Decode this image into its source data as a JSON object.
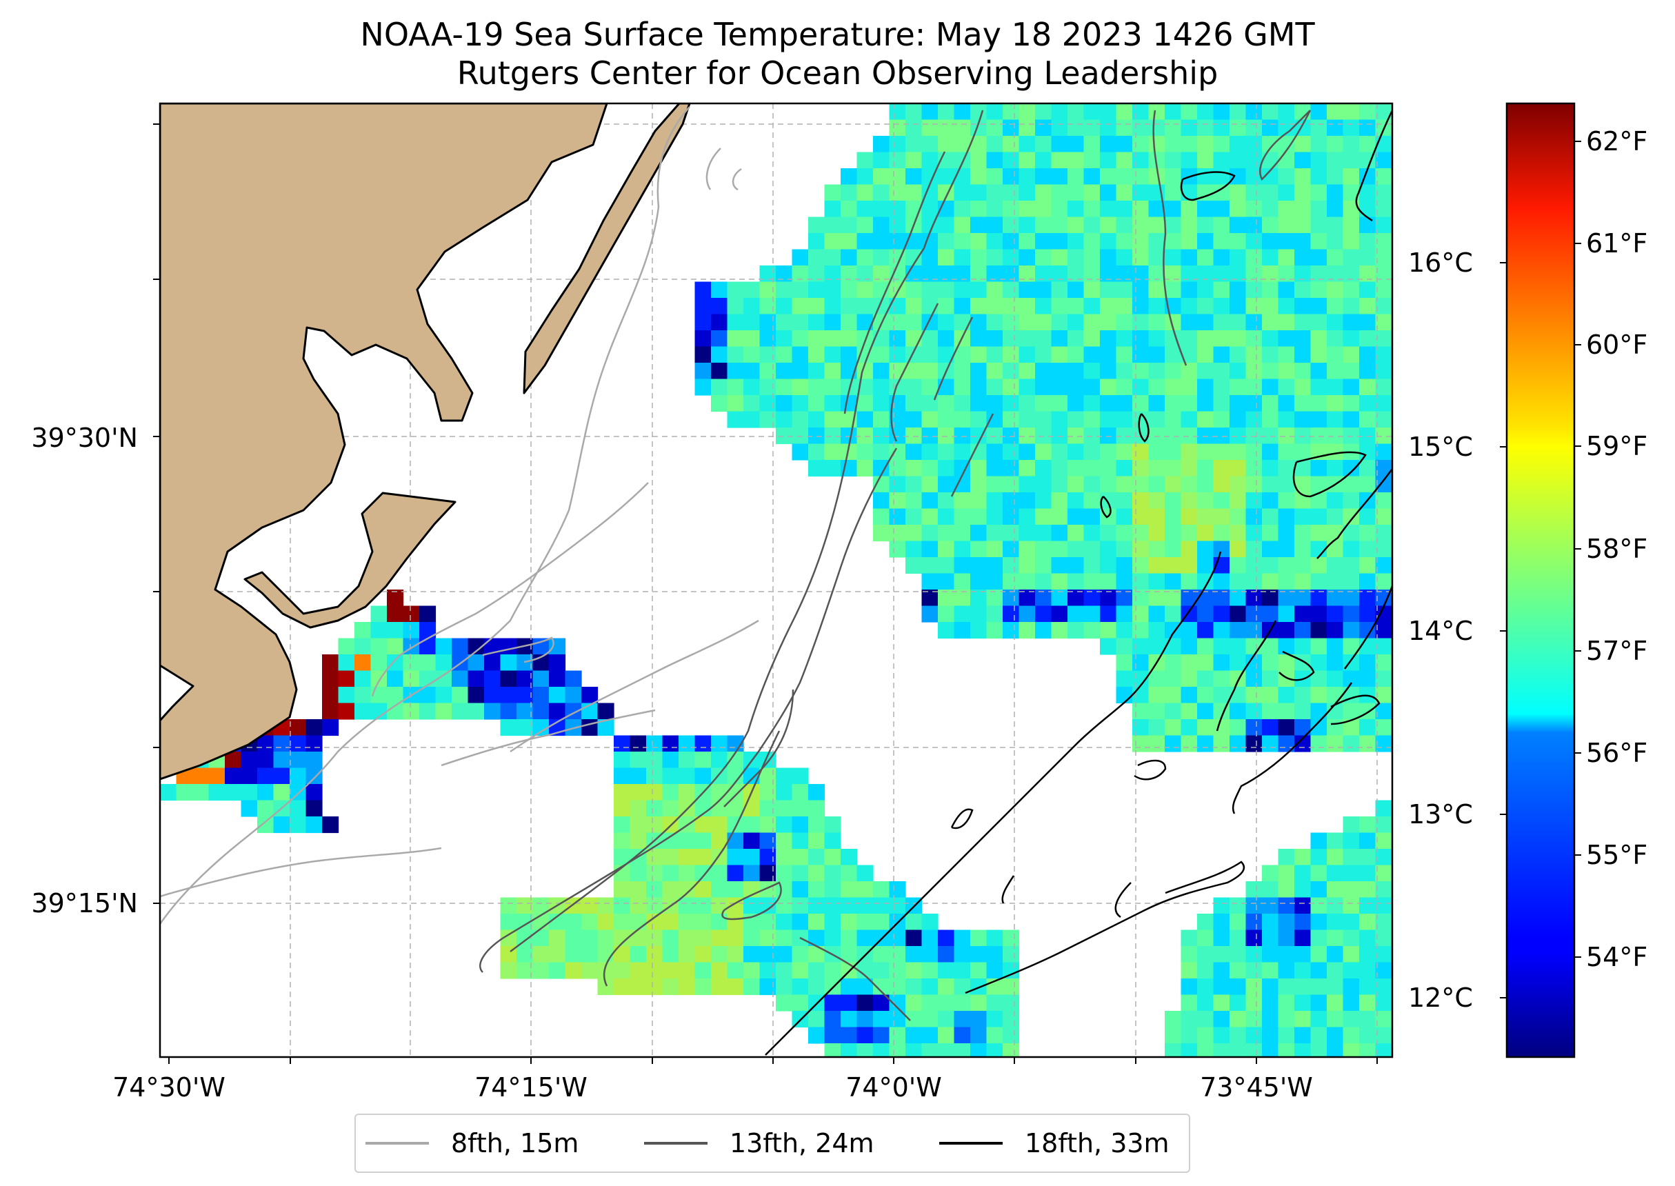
{
  "title": {
    "line1": "NOAA-19 Sea Surface Temperature: May 18 2023 1426 GMT",
    "line2": "Rutgers Center for Ocean Observing Leadership"
  },
  "map": {
    "lon_labels": [
      "74°30'W",
      "74°15'W",
      "74°0'W",
      "73°45'W"
    ],
    "lat_labels": [
      "39°30'N",
      "39°15'N"
    ],
    "land_color": "#d2b48c",
    "gridlines": true
  },
  "colorbar": {
    "colormap": "jet",
    "fahrenheit_labels": [
      "62°F",
      "61°F",
      "60°F",
      "59°F",
      "58°F",
      "57°F",
      "56°F",
      "55°F",
      "54°F"
    ],
    "celsius_labels": [
      "16°C",
      "15°C",
      "14°C",
      "13°C",
      "12°C"
    ]
  },
  "legend": {
    "items": [
      {
        "label": "8fth, 15m",
        "color": "#a9a9a9"
      },
      {
        "label": "13fth, 24m",
        "color": "#555555"
      },
      {
        "label": "18fth, 33m",
        "color": "#000000"
      }
    ],
    "placement": "bottom-center"
  }
}
